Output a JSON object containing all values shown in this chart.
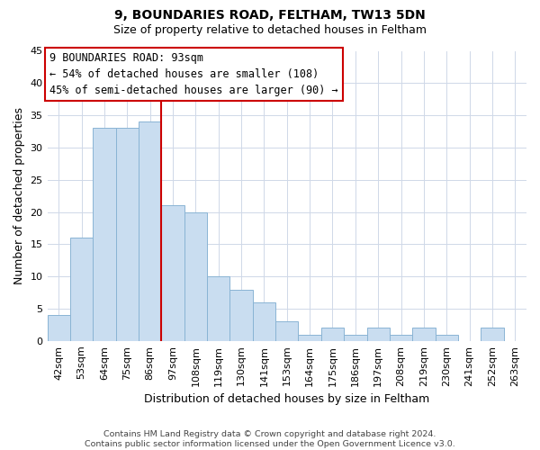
{
  "title": "9, BOUNDARIES ROAD, FELTHAM, TW13 5DN",
  "subtitle": "Size of property relative to detached houses in Feltham",
  "xlabel": "Distribution of detached houses by size in Feltham",
  "ylabel": "Number of detached properties",
  "bar_labels": [
    "42sqm",
    "53sqm",
    "64sqm",
    "75sqm",
    "86sqm",
    "97sqm",
    "108sqm",
    "119sqm",
    "130sqm",
    "141sqm",
    "153sqm",
    "164sqm",
    "175sqm",
    "186sqm",
    "197sqm",
    "208sqm",
    "219sqm",
    "230sqm",
    "241sqm",
    "252sqm",
    "263sqm"
  ],
  "bar_values": [
    4,
    16,
    33,
    33,
    34,
    21,
    20,
    10,
    8,
    6,
    3,
    1,
    2,
    1,
    2,
    1,
    2,
    1,
    0,
    2,
    0
  ],
  "bar_color": "#c9ddf0",
  "bar_edge_color": "#8ab4d4",
  "vline_color": "#cc0000",
  "vline_index": 4.5,
  "annotation_box_text": "9 BOUNDARIES ROAD: 93sqm\n← 54% of detached houses are smaller (108)\n45% of semi-detached houses are larger (90) →",
  "annotation_box_edge_color": "#cc0000",
  "ylim": [
    0,
    45
  ],
  "yticks": [
    0,
    5,
    10,
    15,
    20,
    25,
    30,
    35,
    40,
    45
  ],
  "footer": "Contains HM Land Registry data © Crown copyright and database right 2024.\nContains public sector information licensed under the Open Government Licence v3.0.",
  "background_color": "#ffffff",
  "grid_color": "#cfd8e8",
  "title_fontsize": 10,
  "subtitle_fontsize": 9,
  "axis_label_fontsize": 9,
  "tick_fontsize": 8,
  "annotation_fontsize": 8.5,
  "footer_fontsize": 6.8
}
